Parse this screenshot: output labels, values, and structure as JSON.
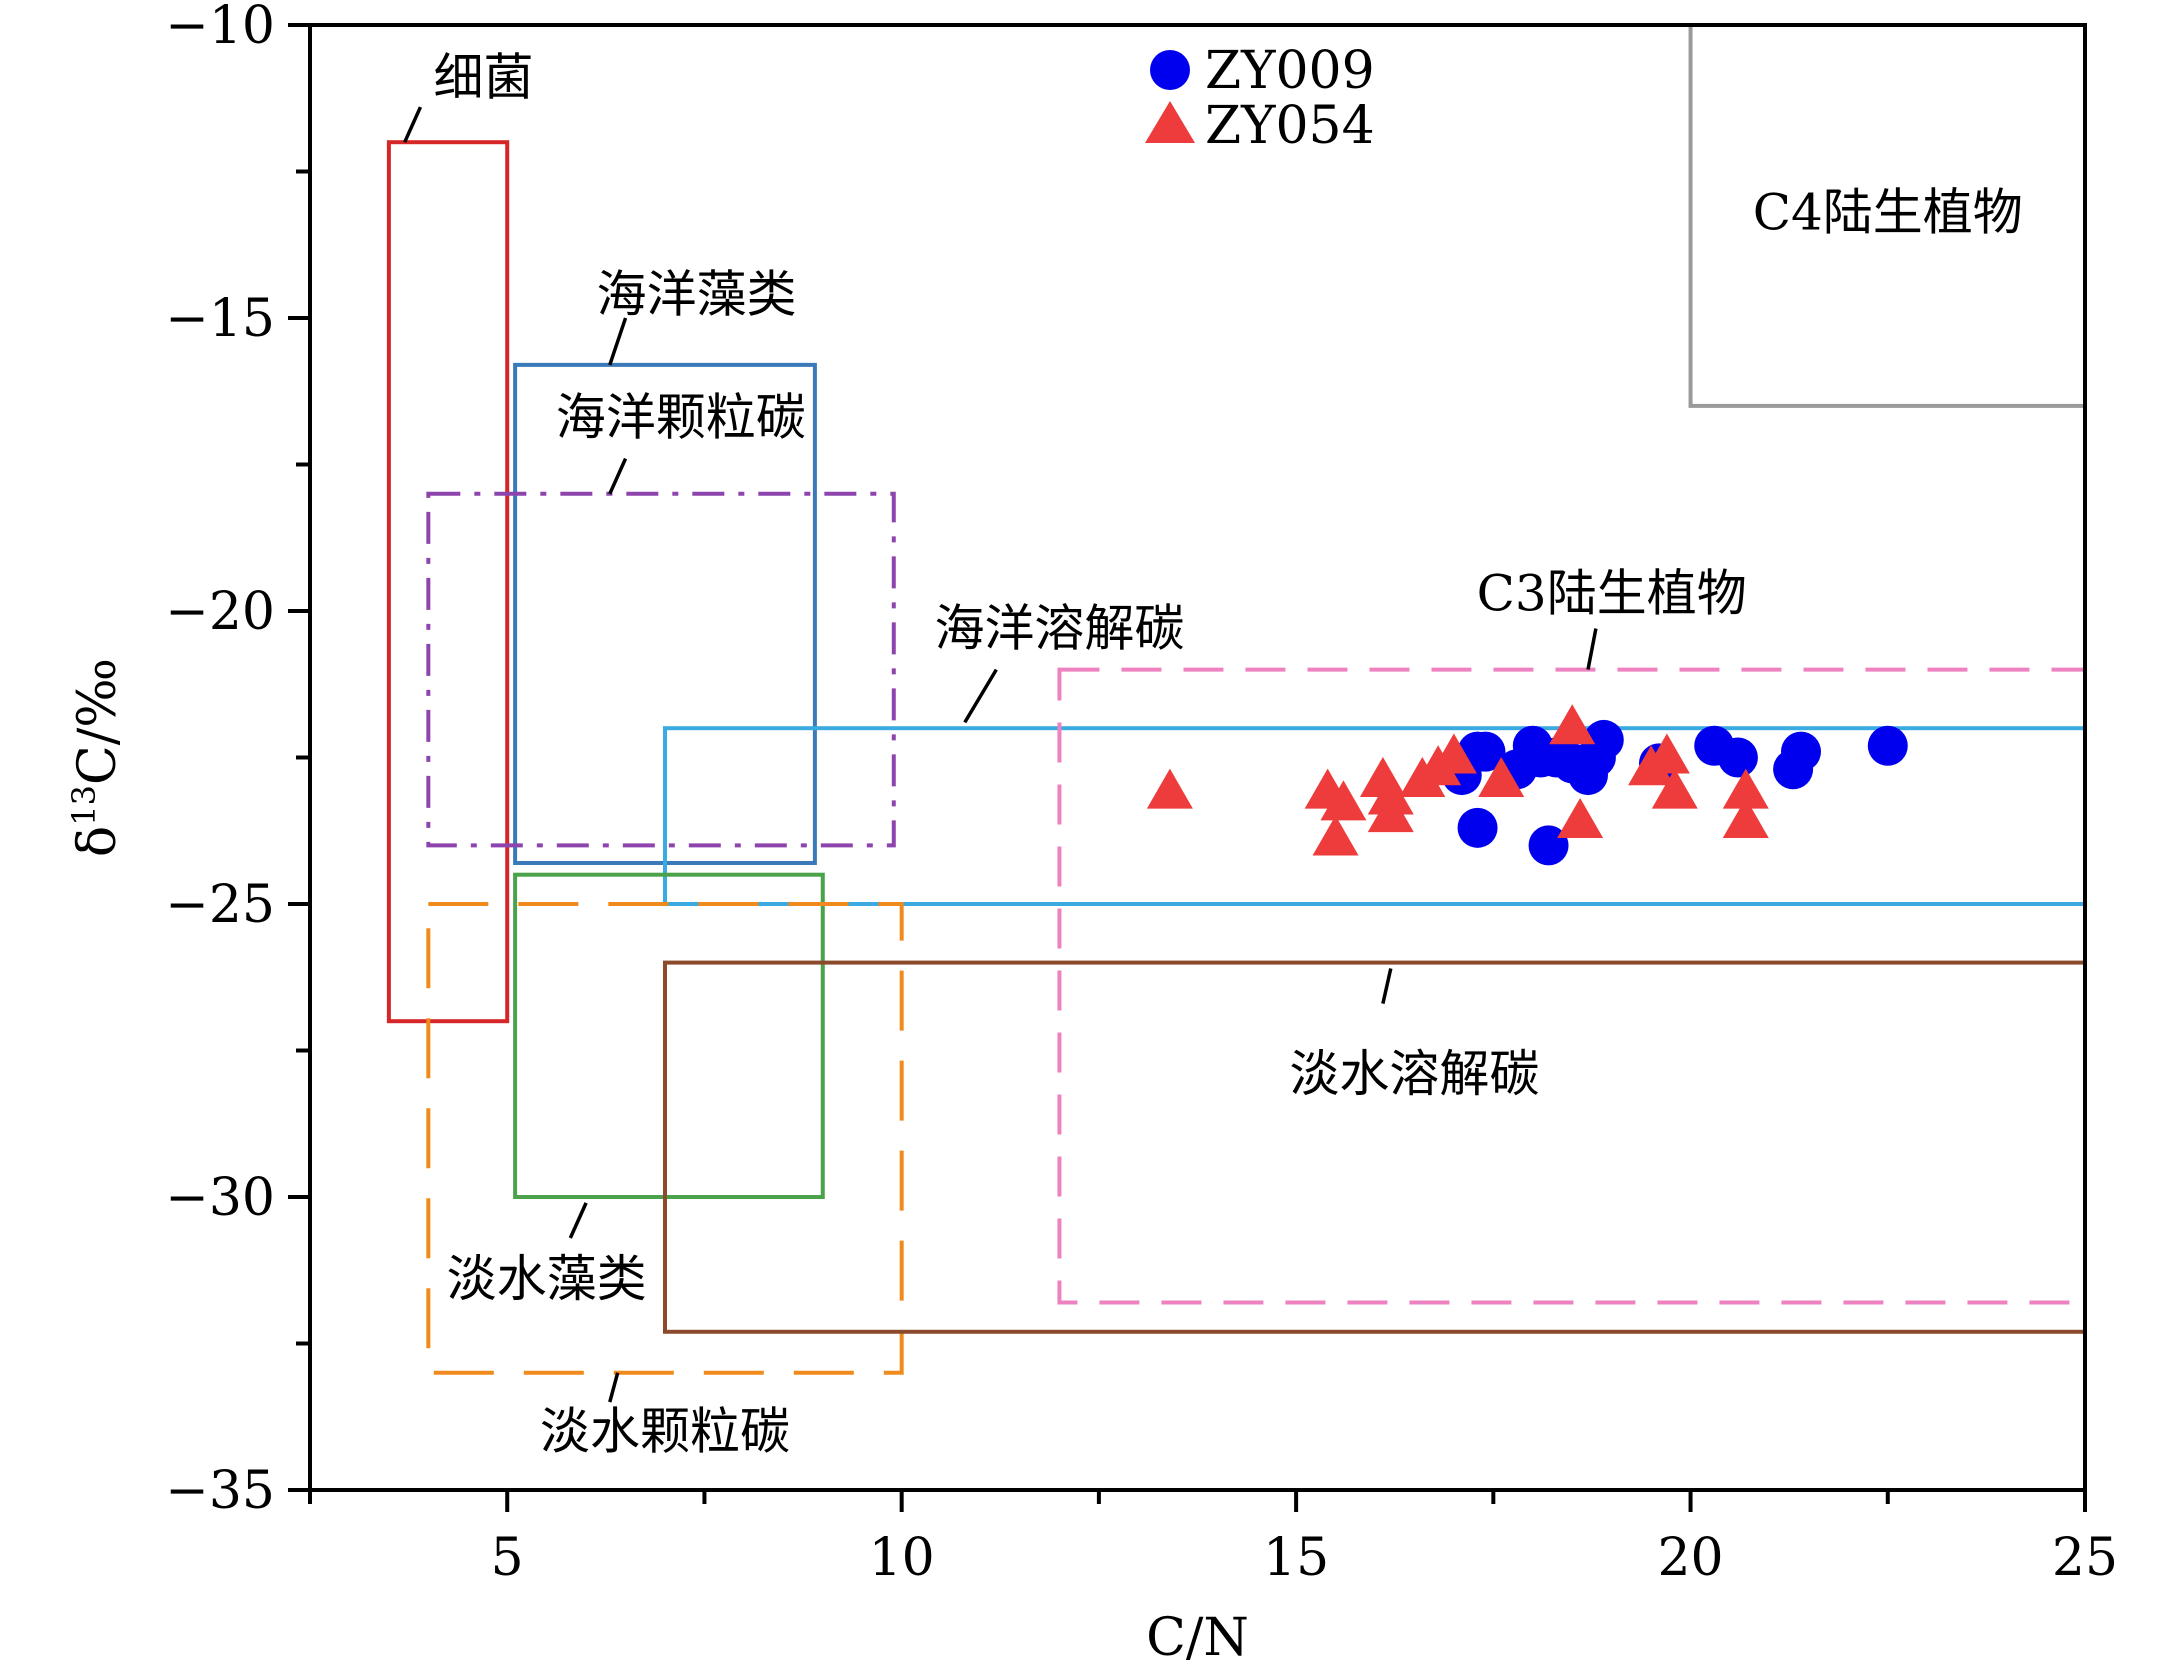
{
  "chart_data": {
    "type": "scatter",
    "xlabel": "C/N",
    "ylabel": "δ¹³C/‰",
    "ylabel_main": "δ",
    "ylabel_sup": "13",
    "ylabel_rest": "C/‰",
    "xlim": [
      2.5,
      25
    ],
    "ylim": [
      -35,
      -10
    ],
    "x_ticks": [
      {
        "value": 5,
        "label": "5"
      },
      {
        "value": 10,
        "label": "10"
      },
      {
        "value": 15,
        "label": "15"
      },
      {
        "value": 20,
        "label": "20"
      },
      {
        "value": 25,
        "label": "25"
      }
    ],
    "x_minor_ticks": [
      2.5,
      7.5,
      12.5,
      17.5,
      22.5
    ],
    "y_ticks": [
      {
        "value": -10,
        "label": "−10"
      },
      {
        "value": -15,
        "label": "−15"
      },
      {
        "value": -20,
        "label": "−20"
      },
      {
        "value": -25,
        "label": "−25"
      },
      {
        "value": -30,
        "label": "−30"
      },
      {
        "value": -35,
        "label": "−35"
      }
    ],
    "y_minor_ticks": [
      -12.5,
      -17.5,
      -22.5,
      -27.5,
      -32.5
    ],
    "regions": [
      {
        "name": "细菌",
        "x": [
          3.5,
          5.0
        ],
        "y": [
          -27,
          -12
        ],
        "color": "#d62728",
        "dash": "solid",
        "label_at": [
          4.7,
          -10.9
        ],
        "leader": [
          [
            3.9,
            -11.4
          ],
          [
            3.7,
            -12.0
          ]
        ]
      },
      {
        "name": "海洋藻类",
        "x": [
          5.1,
          8.9
        ],
        "y": [
          -24.3,
          -15.8
        ],
        "color": "#3a7ab8",
        "dash": "solid",
        "label_at": [
          7.4,
          -14.6
        ],
        "leader": [
          [
            6.5,
            -15.0
          ],
          [
            6.3,
            -15.8
          ]
        ]
      },
      {
        "name": "海洋颗粒碳",
        "x": [
          4.0,
          9.9
        ],
        "y": [
          -24.0,
          -18.0
        ],
        "color": "#8e44ad",
        "dash": "dashdot",
        "label_at": [
          7.2,
          -16.7
        ],
        "leader": [
          [
            6.5,
            -17.4
          ],
          [
            6.3,
            -18.0
          ]
        ]
      },
      {
        "name": "海洋溶解碳",
        "x": [
          7.0,
          25.0
        ],
        "y": [
          -25.0,
          -22.0
        ],
        "color": "#3aaae0",
        "dash": "solid",
        "label_at": [
          12.0,
          -20.3
        ],
        "leader": [
          [
            11.2,
            -21.0
          ],
          [
            10.8,
            -21.9
          ]
        ]
      },
      {
        "name": "C3陆生植物",
        "x": [
          12.0,
          25.0
        ],
        "y": [
          -31.8,
          -21.0
        ],
        "color": "#ee82c0",
        "dash": "dashed",
        "label_at": [
          19.0,
          -19.7
        ],
        "leader": [
          [
            18.8,
            -20.3
          ],
          [
            18.7,
            -21.0
          ]
        ]
      },
      {
        "name": "C4陆生植物",
        "x": [
          20.0,
          25.0
        ],
        "y": [
          -16.5,
          -10.0
        ],
        "color": "#9a9a9a",
        "dash": "solid",
        "label_at": [
          22.5,
          -13.2
        ],
        "leader": []
      },
      {
        "name": "淡水藻类",
        "x": [
          5.1,
          9.0
        ],
        "y": [
          -30.0,
          -24.5
        ],
        "color": "#4aa34a",
        "dash": "solid",
        "label_at": [
          5.5,
          -31.4
        ],
        "leader": [
          [
            6.0,
            -30.1
          ],
          [
            5.8,
            -30.7
          ]
        ]
      },
      {
        "name": "淡水颗粒碳",
        "x": [
          4.0,
          10.0
        ],
        "y": [
          -33.0,
          -25.0
        ],
        "color": "#f08a1c",
        "dash": "longdash",
        "label_at": [
          7.0,
          -34.0
        ],
        "leader": [
          [
            6.4,
            -33.0
          ],
          [
            6.3,
            -33.5
          ]
        ]
      },
      {
        "name": "淡水溶解碳",
        "x": [
          7.0,
          25.0
        ],
        "y": [
          -32.3,
          -26.0
        ],
        "color": "#8b4a2b",
        "dash": "solid",
        "label_at": [
          16.5,
          -27.9
        ],
        "leader": [
          [
            16.2,
            -26.1
          ],
          [
            16.1,
            -26.7
          ]
        ]
      }
    ],
    "series": [
      {
        "name": "ZY009",
        "marker": "circle",
        "color": "#0000ee",
        "x": [
          17.1,
          17.3,
          17.4,
          17.8,
          18.0,
          18.1,
          18.3,
          18.5,
          18.7,
          18.8,
          18.9,
          19.6,
          20.3,
          20.6,
          21.3,
          21.4,
          22.5,
          17.3,
          18.2
        ],
        "y": [
          -22.8,
          -22.4,
          -22.4,
          -22.7,
          -22.3,
          -22.5,
          -22.5,
          -22.6,
          -22.8,
          -22.5,
          -22.2,
          -22.6,
          -22.3,
          -22.5,
          -22.7,
          -22.4,
          -22.3,
          -23.7,
          -24.0
        ]
      },
      {
        "name": "ZY054",
        "marker": "triangle",
        "color": "#ee3b3b",
        "x": [
          13.4,
          15.4,
          15.6,
          15.5,
          16.1,
          16.2,
          16.2,
          16.6,
          16.8,
          17.0,
          17.6,
          18.5,
          18.6,
          19.5,
          19.7,
          19.8,
          20.7,
          20.7
        ],
        "y": [
          -23.1,
          -23.1,
          -23.3,
          -23.9,
          -22.9,
          -23.2,
          -23.5,
          -22.9,
          -22.7,
          -22.5,
          -22.9,
          -22.0,
          -23.6,
          -22.7,
          -22.5,
          -23.1,
          -23.1,
          -23.6
        ]
      }
    ],
    "legend_position": "top-center",
    "grid": false
  }
}
